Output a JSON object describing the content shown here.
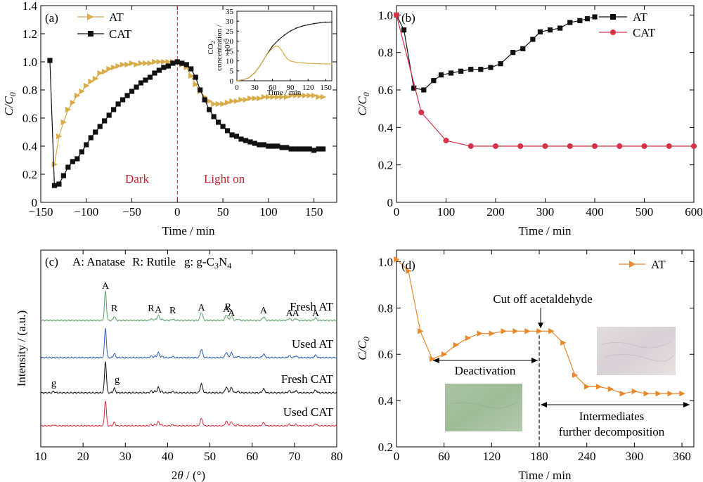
{
  "colors": {
    "at_gold": "#d9ac4a",
    "cat_black": "#111111",
    "cat_red": "#d6324a",
    "at_orange": "#e8892e",
    "dashed_red": "#c8202b",
    "xrd_green": "#5aa46a",
    "xrd_blue": "#2f5fb5",
    "xrd_black": "#111111",
    "xrd_red": "#d92b3a"
  },
  "chart_data": [
    {
      "panel": "(a)",
      "type": "line",
      "xlabel": "Time / min",
      "ylabel_main": "C/C",
      "ylabel_sub": "0",
      "xlim": [
        -150,
        175
      ],
      "ylim": [
        0,
        1.4
      ],
      "xticks": [
        "−150",
        "−100",
        "−50",
        "0",
        "50",
        "100",
        "150"
      ],
      "xtick_values": [
        -150,
        -100,
        -50,
        0,
        50,
        100,
        150
      ],
      "yticks": [
        "0",
        "0.2",
        "0.4",
        "0.6",
        "0.8",
        "1.0",
        "1.2",
        "1.4"
      ],
      "ytick_values": [
        0,
        0.2,
        0.4,
        0.6,
        0.8,
        1.0,
        1.2,
        1.4
      ],
      "legend": "top-left",
      "annotations": {
        "dark": "Dark",
        "light": "Light on"
      },
      "series": [
        {
          "name": "AT",
          "marker": "triangle-right",
          "color": "#d9ac4a",
          "x": [
            -135,
            -130,
            -125,
            -120,
            -115,
            -110,
            -105,
            -100,
            -95,
            -90,
            -85,
            -80,
            -75,
            -70,
            -65,
            -60,
            -55,
            -50,
            -45,
            -40,
            -35,
            -30,
            -25,
            -20,
            -15,
            -10,
            -5,
            0,
            5,
            10,
            15,
            20,
            25,
            30,
            35,
            40,
            45,
            50,
            55,
            60,
            65,
            70,
            75,
            80,
            85,
            90,
            95,
            100,
            105,
            110,
            115,
            120,
            125,
            130,
            135,
            140,
            145,
            150,
            155,
            160
          ],
          "y": [
            0.27,
            0.47,
            0.57,
            0.66,
            0.71,
            0.76,
            0.79,
            0.83,
            0.86,
            0.88,
            0.92,
            0.93,
            0.95,
            0.96,
            0.97,
            0.98,
            0.98,
            0.99,
            0.98,
            0.99,
            0.99,
            0.99,
            1.0,
            1.0,
            1.0,
            1.0,
            1.0,
            1.0,
            0.98,
            0.96,
            0.9,
            0.84,
            0.79,
            0.75,
            0.72,
            0.7,
            0.7,
            0.7,
            0.71,
            0.72,
            0.72,
            0.73,
            0.73,
            0.74,
            0.74,
            0.74,
            0.75,
            0.75,
            0.75,
            0.75,
            0.75,
            0.75,
            0.76,
            0.76,
            0.76,
            0.76,
            0.76,
            0.76,
            0.75,
            0.75
          ]
        },
        {
          "name": "CAT",
          "marker": "square",
          "color": "#111111",
          "x": [
            -140,
            -135,
            -130,
            -125,
            -120,
            -115,
            -110,
            -105,
            -100,
            -95,
            -90,
            -85,
            -80,
            -75,
            -70,
            -65,
            -60,
            -55,
            -50,
            -45,
            -40,
            -35,
            -30,
            -25,
            -20,
            -15,
            -10,
            -5,
            0,
            5,
            10,
            15,
            20,
            25,
            30,
            35,
            40,
            45,
            50,
            55,
            60,
            65,
            70,
            75,
            80,
            85,
            90,
            95,
            100,
            105,
            110,
            115,
            120,
            125,
            130,
            135,
            140,
            145,
            150,
            155,
            160
          ],
          "y": [
            1.01,
            0.12,
            0.13,
            0.19,
            0.25,
            0.29,
            0.31,
            0.36,
            0.41,
            0.46,
            0.5,
            0.54,
            0.58,
            0.62,
            0.66,
            0.7,
            0.73,
            0.76,
            0.79,
            0.82,
            0.85,
            0.87,
            0.89,
            0.92,
            0.94,
            0.96,
            0.97,
            0.99,
            1.0,
            0.99,
            0.98,
            0.95,
            0.89,
            0.8,
            0.73,
            0.66,
            0.61,
            0.57,
            0.54,
            0.51,
            0.48,
            0.47,
            0.45,
            0.44,
            0.43,
            0.42,
            0.41,
            0.41,
            0.4,
            0.4,
            0.4,
            0.39,
            0.39,
            0.38,
            0.38,
            0.38,
            0.38,
            0.38,
            0.37,
            0.38,
            0.38
          ]
        }
      ],
      "inset": {
        "ylabel_line1": "CO",
        "ylabel_line1_sub": "2",
        "ylabel_line2": "concentration /",
        "ylabel_line3": "×10",
        "ylabel_line3_sup": "−6",
        "xlabel": "Time / min",
        "xlim": [
          0,
          160
        ],
        "ylim": [
          0,
          35
        ],
        "xticks": [
          "0",
          "30",
          "60",
          "90",
          "120",
          "150"
        ],
        "xtick_values": [
          0,
          30,
          60,
          90,
          120,
          150
        ],
        "yticks": [
          "0",
          "5",
          "10",
          "15",
          "20",
          "25",
          "30",
          "35"
        ],
        "ytick_values": [
          0,
          5,
          10,
          15,
          20,
          25,
          30,
          35
        ],
        "series": [
          {
            "name": "CAT",
            "color": "#111111",
            "x": [
              0,
              10,
              20,
              30,
              40,
              50,
              60,
              70,
              80,
              90,
              100,
              110,
              120,
              130,
              140,
              150,
              160
            ],
            "y": [
              0,
              0.5,
              1.5,
              4,
              8,
              13,
              17.5,
              20.5,
              23,
              25,
              26.5,
              27.5,
              28.2,
              28.8,
              29.2,
              29.5,
              29.6
            ]
          },
          {
            "name": "AT",
            "color": "#d9ac4a",
            "x": [
              0,
              10,
              20,
              30,
              40,
              50,
              60,
              65,
              70,
              75,
              80,
              85,
              90,
              100,
              110,
              120,
              130,
              140,
              150,
              160
            ],
            "y": [
              0,
              0.5,
              1.5,
              4,
              8,
              13,
              16.5,
              17.5,
              17.3,
              15.5,
              13,
              11,
              10,
              9.3,
              9.0,
              8.8,
              8.7,
              8.6,
              8.5,
              8.5
            ]
          }
        ]
      }
    },
    {
      "panel": "(b)",
      "type": "line",
      "xlabel": "Time / min",
      "ylabel_main": "C/C",
      "ylabel_sub": "0",
      "xlim": [
        0,
        600
      ],
      "ylim": [
        0,
        1.05
      ],
      "xticks": [
        "0",
        "100",
        "200",
        "300",
        "400",
        "500",
        "600"
      ],
      "xtick_values": [
        0,
        100,
        200,
        300,
        400,
        500,
        600
      ],
      "yticks": [
        "0",
        "0.2",
        "0.4",
        "0.6",
        "0.8",
        "1.0"
      ],
      "ytick_values": [
        0,
        0.2,
        0.4,
        0.6,
        0.8,
        1.0
      ],
      "legend": "top-right",
      "series": [
        {
          "name": "AT",
          "marker": "square",
          "color": "#111111",
          "x": [
            0,
            15,
            35,
            55,
            75,
            90,
            110,
            130,
            150,
            170,
            190,
            210,
            235,
            255,
            275,
            290,
            310,
            330,
            350,
            370,
            385,
            400
          ],
          "y": [
            1.0,
            0.92,
            0.61,
            0.6,
            0.65,
            0.68,
            0.69,
            0.7,
            0.71,
            0.71,
            0.72,
            0.74,
            0.8,
            0.82,
            0.87,
            0.91,
            0.92,
            0.93,
            0.96,
            0.97,
            0.98,
            0.99
          ]
        },
        {
          "name": "CAT",
          "marker": "circle",
          "color": "#d6324a",
          "x": [
            0,
            50,
            100,
            150,
            200,
            250,
            300,
            350,
            400,
            450,
            500,
            550,
            600
          ],
          "y": [
            1.0,
            0.48,
            0.33,
            0.3,
            0.3,
            0.3,
            0.3,
            0.3,
            0.3,
            0.3,
            0.3,
            0.3,
            0.3
          ]
        }
      ]
    },
    {
      "panel": "(c)",
      "type": "line",
      "xlabel_main": "2",
      "xlabel_theta": "θ",
      "xlabel_unit": " / (°)",
      "ylabel": "Intensity / (a.u.)",
      "xlim": [
        10,
        80
      ],
      "xticks": [
        "10",
        "20",
        "30",
        "40",
        "50",
        "60",
        "70",
        "80"
      ],
      "xtick_values": [
        10,
        20,
        30,
        40,
        50,
        60,
        70,
        80
      ],
      "legend_text": {
        "anatase": "A: Anatase",
        "rutile": "R: Rutile",
        "gcn_prefix": "g: g-C",
        "gcn_sub3": "3",
        "gcn_n": "N",
        "gcn_sub4": "4"
      },
      "peak_labels": [
        {
          "text": "A",
          "x": 25.3
        },
        {
          "text": "R",
          "x": 27.4
        },
        {
          "text": "R",
          "x": 36.1
        },
        {
          "text": "A",
          "x": 37.8
        },
        {
          "text": "R",
          "x": 41.2
        },
        {
          "text": "A",
          "x": 48.0
        },
        {
          "text": "A",
          "x": 53.9
        },
        {
          "text": "R",
          "x": 54.3
        },
        {
          "text": "A",
          "x": 55.1
        },
        {
          "text": "A",
          "x": 62.7
        },
        {
          "text": "A",
          "x": 68.8
        },
        {
          "text": "A",
          "x": 70.3
        },
        {
          "text": "A",
          "x": 75.0
        }
      ],
      "g_labels": [
        {
          "text": "g",
          "x": 13.1
        },
        {
          "text": "g",
          "x": 27.4
        }
      ],
      "patterns": [
        {
          "name": "Fresh AT",
          "color": "#5aa46a"
        },
        {
          "name": "Used  AT",
          "color": "#2f5fb5"
        },
        {
          "name": "Fresh CAT",
          "color": "#111111"
        },
        {
          "name": "Used  CAT",
          "color": "#d92b3a"
        }
      ],
      "peaks": [
        {
          "x": 13.1,
          "h": 0.04,
          "g": true
        },
        {
          "x": 25.3,
          "h": 1.0
        },
        {
          "x": 27.4,
          "h": 0.14
        },
        {
          "x": 36.1,
          "h": 0.06
        },
        {
          "x": 37.0,
          "h": 0.05
        },
        {
          "x": 37.8,
          "h": 0.18
        },
        {
          "x": 38.6,
          "h": 0.05
        },
        {
          "x": 41.2,
          "h": 0.04
        },
        {
          "x": 48.0,
          "h": 0.28
        },
        {
          "x": 53.9,
          "h": 0.18
        },
        {
          "x": 55.1,
          "h": 0.16
        },
        {
          "x": 56.6,
          "h": 0.04
        },
        {
          "x": 62.7,
          "h": 0.12
        },
        {
          "x": 68.8,
          "h": 0.06
        },
        {
          "x": 70.3,
          "h": 0.06
        },
        {
          "x": 75.0,
          "h": 0.08
        }
      ]
    },
    {
      "panel": "(d)",
      "type": "line",
      "xlabel": "Time / min",
      "ylabel_main": "C/C",
      "ylabel_sub": "0",
      "xlim": [
        0,
        375
      ],
      "ylim": [
        0.2,
        1.05
      ],
      "xticks": [
        "0",
        "60",
        "120",
        "180",
        "240",
        "300",
        "360"
      ],
      "xtick_values": [
        0,
        60,
        120,
        180,
        240,
        300,
        360
      ],
      "yticks": [
        "0.2",
        "0.4",
        "0.6",
        "0.8",
        "1.0"
      ],
      "ytick_values": [
        0.2,
        0.4,
        0.6,
        0.8,
        1.0
      ],
      "legend": "top-right",
      "annotations": {
        "cutoff": "Cut off acetaldehyde",
        "deactivation": "Deactivation",
        "intermediates_line1": "Intermediates",
        "intermediates_line2": "further decomposition"
      },
      "cutoff_x": 180,
      "series": [
        {
          "name": "AT",
          "marker": "triangle-right",
          "color": "#e8892e",
          "x": [
            0,
            15,
            30,
            45,
            60,
            75,
            90,
            105,
            120,
            135,
            150,
            165,
            180,
            195,
            210,
            225,
            240,
            255,
            270,
            285,
            300,
            315,
            330,
            345,
            360
          ],
          "y": [
            1.01,
            0.96,
            0.7,
            0.58,
            0.6,
            0.64,
            0.67,
            0.69,
            0.69,
            0.7,
            0.7,
            0.7,
            0.7,
            0.7,
            0.65,
            0.51,
            0.46,
            0.46,
            0.45,
            0.43,
            0.44,
            0.43,
            0.43,
            0.43,
            0.43
          ]
        }
      ]
    }
  ]
}
